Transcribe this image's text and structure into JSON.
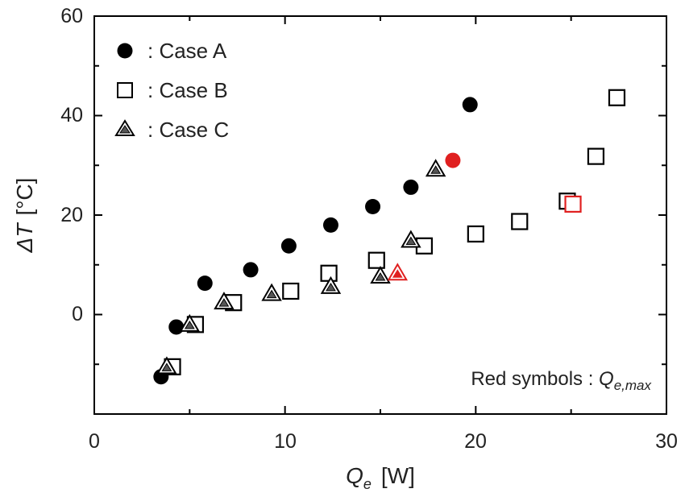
{
  "chart_data": {
    "type": "scatter",
    "title": "",
    "xlabel_symbol": "Q",
    "xlabel_sub": "e",
    "xlabel_unit": "[W]",
    "ylabel_symbol": "ΔT",
    "ylabel_unit": "[°C]",
    "xlim": [
      0,
      30
    ],
    "ylim": [
      -20,
      60
    ],
    "xticks": [
      0,
      10,
      20,
      30
    ],
    "yticks": [
      0,
      20,
      40,
      60
    ],
    "xtick_labels": [
      "0",
      "10",
      "20",
      "30"
    ],
    "ytick_labels": [
      "0",
      "20",
      "40",
      "60"
    ],
    "grid": false,
    "legend_position": "top-left",
    "series": [
      {
        "name": "Case A",
        "legend_label": ":  Case A",
        "marker": "filled-circle",
        "color": "#000000",
        "points": [
          [
            3.5,
            -12.5
          ],
          [
            4.3,
            -2.5
          ],
          [
            5.8,
            6.3
          ],
          [
            8.2,
            9.0
          ],
          [
            10.2,
            13.8
          ],
          [
            12.4,
            18.0
          ],
          [
            14.6,
            21.7
          ],
          [
            16.6,
            25.6
          ],
          [
            18.8,
            31.0
          ],
          [
            19.7,
            42.2
          ]
        ],
        "max_index": 8
      },
      {
        "name": "Case B",
        "legend_label": ":  Case B",
        "marker": "open-square",
        "color": "#000000",
        "points": [
          [
            4.1,
            -10.5
          ],
          [
            5.3,
            -2.0
          ],
          [
            7.3,
            2.4
          ],
          [
            10.3,
            4.7
          ],
          [
            12.3,
            8.3
          ],
          [
            14.8,
            10.9
          ],
          [
            17.3,
            13.8
          ],
          [
            20.0,
            16.2
          ],
          [
            22.3,
            18.7
          ],
          [
            24.8,
            22.8
          ],
          [
            25.1,
            22.2
          ],
          [
            26.3,
            31.8
          ],
          [
            27.4,
            43.6
          ]
        ],
        "max_index": 10
      },
      {
        "name": "Case C",
        "legend_label": ":  Case C",
        "marker": "double-triangle",
        "color": "#000000",
        "points": [
          [
            3.8,
            -10.5
          ],
          [
            5.0,
            -2.0
          ],
          [
            6.8,
            2.5
          ],
          [
            9.3,
            4.2
          ],
          [
            12.4,
            5.6
          ],
          [
            15.0,
            7.7
          ],
          [
            15.9,
            8.3
          ],
          [
            16.6,
            14.9
          ],
          [
            17.9,
            29.2
          ]
        ],
        "max_index": 6
      }
    ],
    "highlight_color": "#e02020",
    "annotation_text": "Red symbols : ",
    "annotation_symbol": "Q",
    "annotation_sub": "e,max"
  }
}
